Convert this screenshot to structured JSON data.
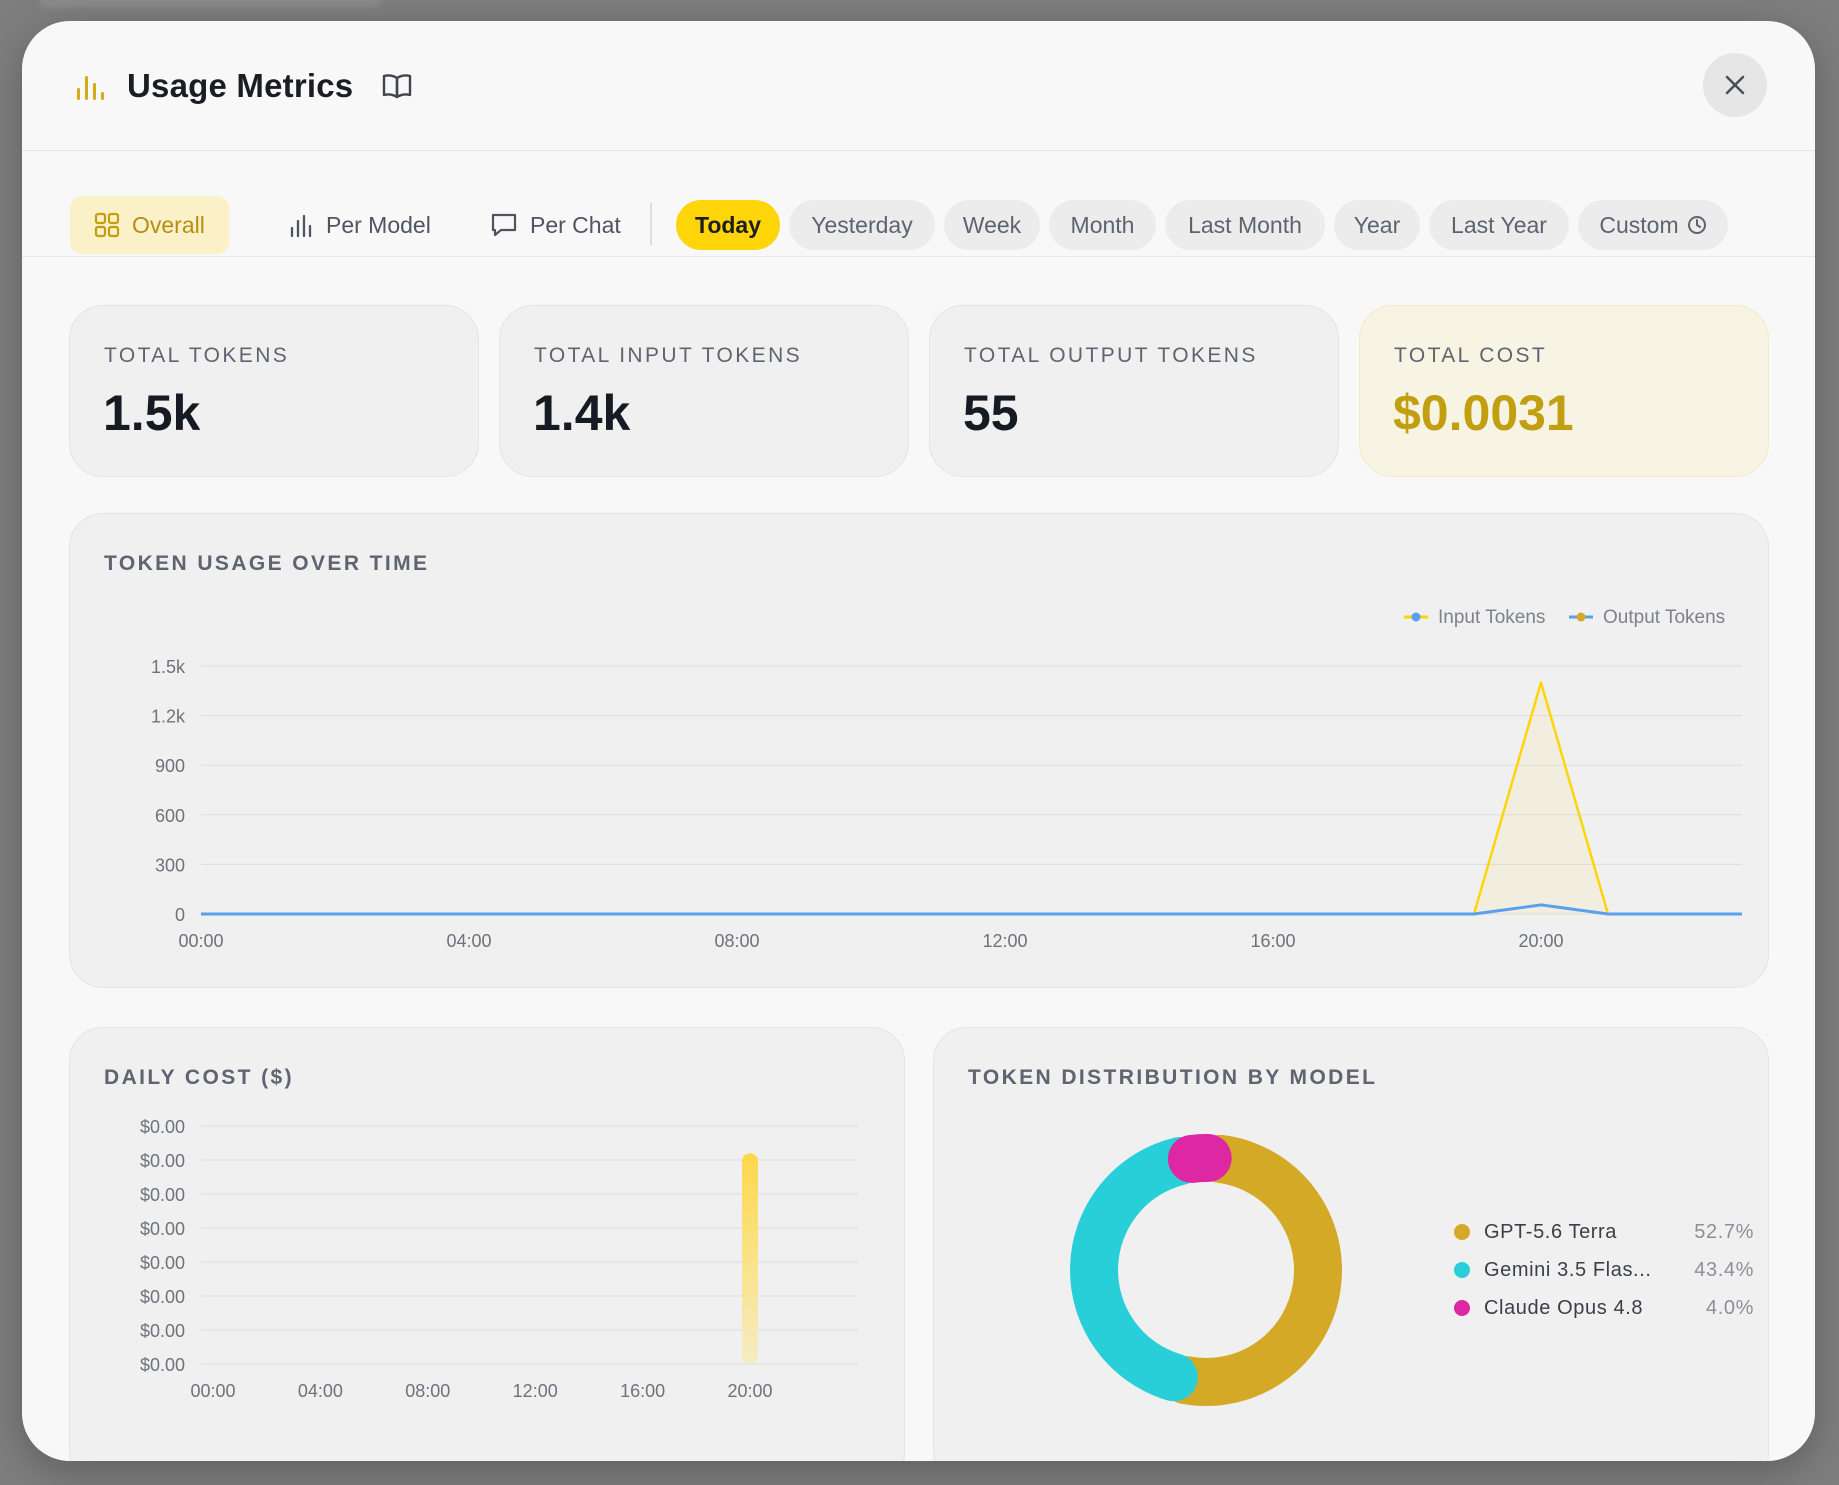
{
  "header": {
    "title": "Usage Metrics",
    "accent": "#d4a91a"
  },
  "view_tabs": [
    {
      "label": "Overall",
      "icon": "grid-icon",
      "active": true
    },
    {
      "label": "Per Model",
      "icon": "bar-chart-icon",
      "active": false
    },
    {
      "label": "Per Chat",
      "icon": "chat-bubble-icon",
      "active": false
    }
  ],
  "ranges": [
    {
      "label": "Today",
      "active": true
    },
    {
      "label": "Yesterday",
      "active": false
    },
    {
      "label": "Week",
      "active": false
    },
    {
      "label": "Month",
      "active": false
    },
    {
      "label": "Last Month",
      "active": false
    },
    {
      "label": "Year",
      "active": false
    },
    {
      "label": "Last Year",
      "active": false
    },
    {
      "label": "Custom",
      "icon": "clock-icon",
      "active": false
    }
  ],
  "stats": {
    "total_tokens": {
      "label": "TOTAL TOKENS",
      "value": "1.5k"
    },
    "input_tokens": {
      "label": "TOTAL INPUT TOKENS",
      "value": "1.4k"
    },
    "output_tokens": {
      "label": "TOTAL OUTPUT TOKENS",
      "value": "55"
    },
    "total_cost": {
      "label": "TOTAL COST",
      "value": "$0.0031"
    }
  },
  "token_chart": {
    "title": "TOKEN USAGE OVER TIME",
    "legend": [
      "Input Tokens",
      "Output Tokens"
    ]
  },
  "cost_chart": {
    "title": "DAILY COST ($)"
  },
  "distribution": {
    "title": "TOKEN DISTRIBUTION BY MODEL"
  },
  "chart_data": [
    {
      "type": "line",
      "title": "TOKEN USAGE OVER TIME",
      "x": [
        "00:00",
        "01:00",
        "02:00",
        "03:00",
        "04:00",
        "05:00",
        "06:00",
        "07:00",
        "08:00",
        "09:00",
        "10:00",
        "11:00",
        "12:00",
        "13:00",
        "14:00",
        "15:00",
        "16:00",
        "17:00",
        "18:00",
        "19:00",
        "20:00",
        "21:00",
        "22:00",
        "23:00"
      ],
      "x_ticks": [
        "00:00",
        "04:00",
        "08:00",
        "12:00",
        "16:00",
        "20:00"
      ],
      "y_ticks": [
        "0",
        "300",
        "600",
        "900",
        "1.2k",
        "1.5k"
      ],
      "ylim": [
        0,
        1500
      ],
      "series": [
        {
          "name": "Input Tokens",
          "color": "#fdd508",
          "values": [
            0,
            0,
            0,
            0,
            0,
            0,
            0,
            0,
            0,
            0,
            0,
            0,
            0,
            0,
            0,
            0,
            0,
            0,
            0,
            0,
            1400,
            0,
            0,
            0
          ]
        },
        {
          "name": "Output Tokens",
          "color": "#5aa0ee",
          "values": [
            0,
            0,
            0,
            0,
            0,
            0,
            0,
            0,
            0,
            0,
            0,
            0,
            0,
            0,
            0,
            0,
            0,
            0,
            0,
            0,
            55,
            0,
            0,
            0
          ]
        }
      ],
      "grid": true,
      "legend_position": "top-right"
    },
    {
      "type": "bar",
      "title": "DAILY COST ($)",
      "categories": [
        "20:00"
      ],
      "values": [
        0.0031
      ],
      "x_ticks": [
        "00:00",
        "04:00",
        "08:00",
        "12:00",
        "16:00",
        "20:00"
      ],
      "y_ticks": [
        "$0.00",
        "$0.00",
        "$0.00",
        "$0.00",
        "$0.00",
        "$0.00",
        "$0.00",
        "$0.00"
      ],
      "ylim": [
        0,
        0.0035
      ],
      "color": "#fdd84a",
      "grid": true
    },
    {
      "type": "pie",
      "title": "TOKEN DISTRIBUTION BY MODEL",
      "slices": [
        {
          "label": "GPT-5.6 Terra",
          "value": 52.7,
          "pct": "52.7%",
          "color": "#d4a925"
        },
        {
          "label": "Gemini 3.5 Flas...",
          "value": 43.4,
          "pct": "43.4%",
          "color": "#28cfd9"
        },
        {
          "label": "Claude Opus 4.8",
          "value": 4.0,
          "pct": "4.0%",
          "color": "#de27a2"
        }
      ],
      "legend_position": "right"
    }
  ]
}
